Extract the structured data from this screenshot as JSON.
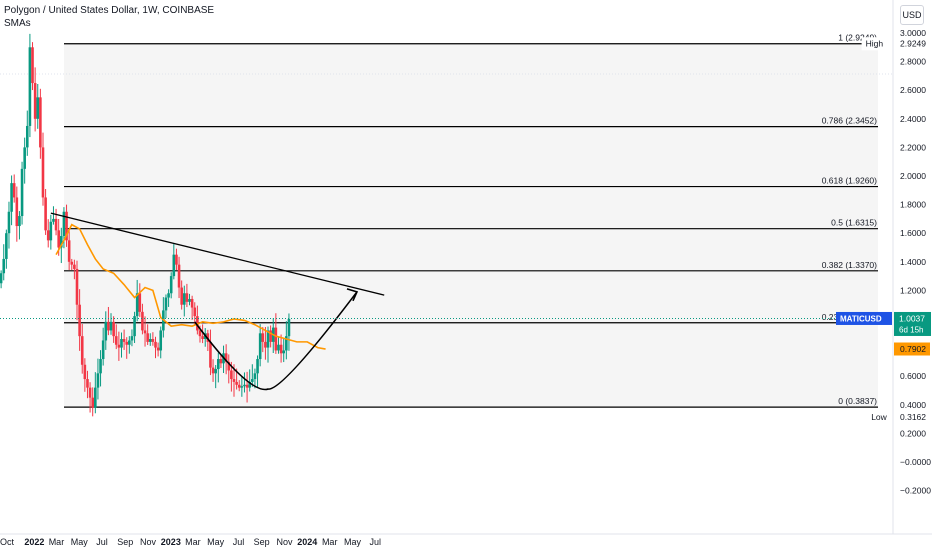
{
  "legend": {
    "title": "Polygon / United States Dollar, 1W, COINBASE",
    "indicator": "SMAs"
  },
  "currency_button": "USD",
  "price_tags": {
    "high": {
      "label": "High",
      "value": "2.9249"
    },
    "low": {
      "label": "Low",
      "value": "0.3162"
    },
    "last": {
      "label": "MATICUSD",
      "value": "1.0037",
      "countdown": "6d 15h"
    },
    "sma": {
      "value": "0.7902"
    }
  },
  "colors": {
    "up": "#089981",
    "down": "#f23645",
    "sma": "#ff9800",
    "fib_line": "#000000",
    "fib_fill": "#f5f5f5",
    "drawing": "#000000",
    "last_price_tag": "#1e53e5"
  },
  "chart_data": {
    "type": "candlestick",
    "title": "Polygon / United States Dollar, 1W, COINBASE",
    "y_axis": {
      "ylim": [
        -0.25,
        3.1
      ],
      "ticks": [
        "3.0000",
        "2.8000",
        "2.6000",
        "2.4000",
        "2.2000",
        "2.0000",
        "1.8000",
        "1.6000",
        "1.4000",
        "1.2000",
        "1.0000",
        "0.8000",
        "0.6000",
        "0.4000",
        "0.2000",
        "−0.0000",
        "−0.2000"
      ],
      "tick_values": [
        3.0,
        2.8,
        2.6,
        2.4,
        2.2,
        2.0,
        1.8,
        1.6,
        1.4,
        1.2,
        1.0,
        0.8,
        0.6,
        0.4,
        0.2,
        0.0,
        -0.2
      ]
    },
    "x_axis": {
      "labels": [
        {
          "text": "Oct",
          "date": "2021-10-01"
        },
        {
          "text": "2022",
          "date": "2022-01-01",
          "bold": true
        },
        {
          "text": "Mar",
          "date": "2022-03-01"
        },
        {
          "text": "May",
          "date": "2022-05-01"
        },
        {
          "text": "Jul",
          "date": "2022-07-01"
        },
        {
          "text": "Sep",
          "date": "2022-09-01"
        },
        {
          "text": "Nov",
          "date": "2022-11-01"
        },
        {
          "text": "2023",
          "date": "2023-01-01",
          "bold": true
        },
        {
          "text": "Mar",
          "date": "2023-03-01"
        },
        {
          "text": "May",
          "date": "2023-05-01"
        },
        {
          "text": "Jul",
          "date": "2023-07-01"
        },
        {
          "text": "Sep",
          "date": "2023-09-01"
        },
        {
          "text": "Nov",
          "date": "2023-11-01"
        },
        {
          "text": "2024",
          "date": "2024-01-01",
          "bold": true
        },
        {
          "text": "Mar",
          "date": "2024-03-01"
        },
        {
          "text": "May",
          "date": "2024-05-01"
        },
        {
          "text": "Jul",
          "date": "2024-07-01"
        }
      ]
    },
    "weekly_close": [
      1.32,
      1.42,
      1.6,
      1.75,
      1.95,
      1.85,
      1.65,
      1.72,
      2.05,
      2.2,
      2.35,
      2.9,
      2.65,
      2.4,
      2.55,
      2.2,
      1.85,
      1.62,
      1.55,
      1.68,
      1.7,
      1.62,
      1.5,
      1.58,
      1.75,
      1.55,
      1.4,
      1.38,
      1.35,
      1.1,
      0.88,
      0.68,
      0.58,
      0.52,
      0.45,
      0.38,
      0.52,
      0.62,
      0.72,
      0.85,
      0.98,
      0.92,
      0.98,
      0.88,
      0.82,
      0.8,
      0.86,
      0.84,
      0.82,
      0.85,
      0.88,
      1.02,
      1.18,
      1.05,
      0.92,
      0.9,
      0.84,
      0.86,
      0.84,
      0.8,
      0.78,
      0.92,
      1.06,
      1.15,
      1.18,
      1.3,
      1.45,
      1.38,
      1.22,
      1.1,
      1.18,
      1.12,
      1.14,
      1.08,
      1.02,
      0.92,
      0.88,
      0.86,
      0.9,
      0.84,
      0.66,
      0.62,
      0.65,
      0.72,
      0.69,
      0.76,
      0.7,
      0.64,
      0.58,
      0.56,
      0.54,
      0.52,
      0.53,
      0.54,
      0.52,
      0.56,
      0.58,
      0.62,
      0.72,
      0.9,
      0.84,
      0.8,
      0.92,
      0.84,
      0.94,
      0.78,
      0.82,
      0.76,
      0.78,
      0.88,
      1.0
    ],
    "series": [
      {
        "name": "SMA",
        "type": "line",
        "x": [
          "2022-02-28",
          "2022-03-21",
          "2022-04-11",
          "2022-05-02",
          "2022-05-23",
          "2022-06-13",
          "2022-07-04",
          "2022-08-01",
          "2022-08-29",
          "2022-09-26",
          "2022-10-24",
          "2022-11-14",
          "2022-12-05",
          "2023-01-02",
          "2023-01-30",
          "2023-02-27",
          "2023-03-27",
          "2023-04-24",
          "2023-05-22",
          "2023-06-19",
          "2023-07-17",
          "2023-08-14",
          "2023-09-11",
          "2023-10-09",
          "2023-11-06",
          "2023-12-04",
          "2024-01-01",
          "2024-01-29",
          "2024-02-19"
        ],
        "values": [
          1.45,
          1.55,
          1.66,
          1.63,
          1.52,
          1.42,
          1.35,
          1.32,
          1.24,
          1.15,
          1.22,
          1.2,
          1.01,
          0.95,
          0.96,
          0.95,
          0.98,
          0.97,
          0.98,
          1.0,
          0.99,
          0.96,
          0.92,
          0.88,
          0.86,
          0.84,
          0.84,
          0.8,
          0.79
        ]
      }
    ],
    "fibonacci": [
      {
        "level": "1",
        "price": 2.9249,
        "label": "1 (2.9249)"
      },
      {
        "level": "0.786",
        "price": 2.3452,
        "label": "0.786 (2.3452)"
      },
      {
        "level": "0.618",
        "price": 1.926,
        "label": "0.618 (1.9260)"
      },
      {
        "level": "0.5",
        "price": 1.6315,
        "label": "0.5 (1.6315)"
      },
      {
        "level": "0.382",
        "price": 1.337,
        "label": "0.382 (1.3370)"
      },
      {
        "level": "0.236",
        "price": 0.9737,
        "label": "0.236 (0.9737)"
      },
      {
        "level": "0",
        "price": 0.3837,
        "label": "0 (0.3837)"
      }
    ],
    "trendline": {
      "from": {
        "date": "2022-02-14",
        "price": 1.74
      },
      "to": {
        "date": "2024-05-27",
        "price": 1.16
      }
    },
    "cup_arc": {
      "from": {
        "date": "2023-03-06",
        "price": 0.98
      },
      "bottom": {
        "date": "2023-09-18",
        "price": 0.51
      },
      "to": {
        "date": "2024-05-13",
        "price": 1.19
      }
    }
  }
}
